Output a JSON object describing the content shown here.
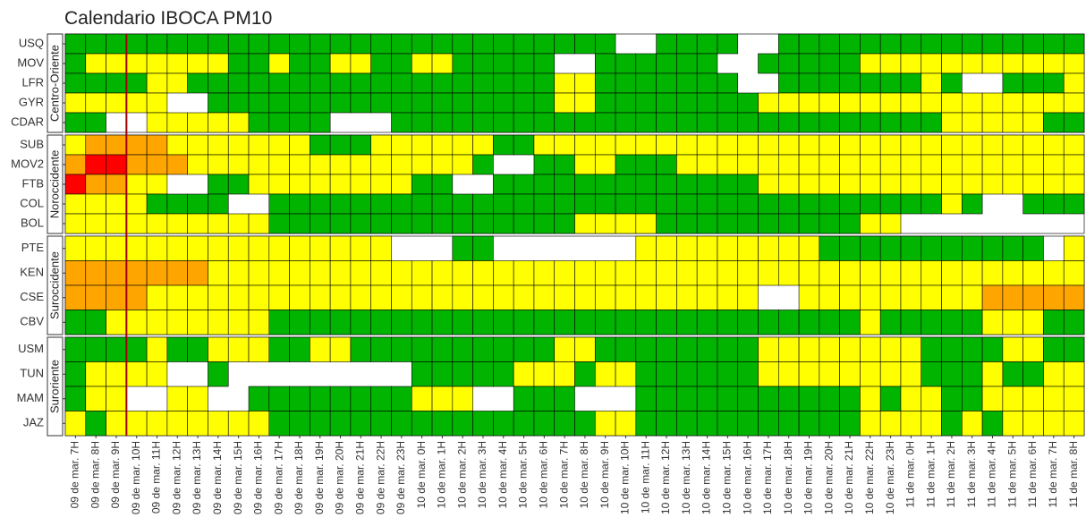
{
  "chart_data": {
    "type": "heatmap",
    "title": "Calendario IBOCA PM10",
    "categories": [
      "09 de mar. 7H",
      "09 de mar. 8H",
      "09 de mar. 9H",
      "09 de mar. 10H",
      "09 de mar. 11H",
      "09 de mar. 12H",
      "09 de mar. 13H",
      "09 de mar. 14H",
      "09 de mar. 15H",
      "09 de mar. 16H",
      "09 de mar. 17H",
      "09 de mar. 18H",
      "09 de mar. 19H",
      "09 de mar. 20H",
      "09 de mar. 21H",
      "09 de mar. 22H",
      "09 de mar. 23H",
      "10 de mar. 0H",
      "10 de mar. 1H",
      "10 de mar. 2H",
      "10 de mar. 3H",
      "10 de mar. 4H",
      "10 de mar. 5H",
      "10 de mar. 6H",
      "10 de mar. 7H",
      "10 de mar. 8H",
      "10 de mar. 9H",
      "10 de mar. 10H",
      "10 de mar. 11H",
      "10 de mar. 12H",
      "10 de mar. 13H",
      "10 de mar. 14H",
      "10 de mar. 15H",
      "10 de mar. 16H",
      "10 de mar. 17H",
      "10 de mar. 18H",
      "10 de mar. 19H",
      "10 de mar. 20H",
      "10 de mar. 21H",
      "10 de mar. 22H",
      "10 de mar. 23H",
      "11 de mar. 0H",
      "11 de mar. 1H",
      "11 de mar. 2H",
      "11 de mar. 3H",
      "11 de mar. 4H",
      "11 de mar. 5H",
      "11 de mar. 6H",
      "11 de mar. 7H",
      "11 de mar. 8H"
    ],
    "colors": [
      "#00b400",
      "#ffff00",
      "#ffa500",
      "#ff0000"
    ],
    "marker_after": "09 de mar. 9H",
    "marker_color": "#a00000",
    "groups": [
      {
        "name": "Centro-Oriente",
        "stations": [
          {
            "name": "USQ",
            "values": [
              0,
              0,
              0,
              0,
              0,
              0,
              0,
              0,
              0,
              0,
              0,
              0,
              0,
              0,
              0,
              0,
              0,
              0,
              0,
              0,
              0,
              0,
              0,
              0,
              0,
              0,
              0,
              null,
              null,
              0,
              0,
              0,
              0,
              null,
              null,
              0,
              0,
              0,
              0,
              0,
              0,
              0,
              0,
              0,
              0,
              0,
              0,
              0,
              0,
              0
            ]
          },
          {
            "name": "MOV",
            "values": [
              0,
              1,
              1,
              1,
              1,
              1,
              1,
              1,
              0,
              0,
              1,
              0,
              0,
              1,
              1,
              0,
              0,
              1,
              1,
              0,
              0,
              0,
              0,
              0,
              null,
              null,
              0,
              0,
              0,
              0,
              0,
              0,
              null,
              null,
              0,
              0,
              0,
              0,
              0,
              1,
              1,
              1,
              1,
              1,
              1,
              1,
              1,
              1,
              1,
              1
            ]
          },
          {
            "name": "LFR",
            "values": [
              0,
              0,
              0,
              0,
              1,
              1,
              0,
              0,
              0,
              0,
              0,
              0,
              0,
              0,
              0,
              0,
              0,
              0,
              0,
              0,
              0,
              0,
              0,
              0,
              1,
              1,
              0,
              0,
              0,
              0,
              0,
              0,
              0,
              null,
              null,
              0,
              0,
              0,
              0,
              0,
              0,
              0,
              1,
              0,
              null,
              null,
              0,
              0,
              0,
              1
            ]
          },
          {
            "name": "GYR",
            "values": [
              1,
              1,
              1,
              1,
              1,
              null,
              null,
              0,
              0,
              0,
              0,
              0,
              0,
              0,
              0,
              0,
              0,
              0,
              0,
              0,
              0,
              0,
              0,
              0,
              1,
              1,
              0,
              0,
              0,
              0,
              0,
              0,
              0,
              0,
              1,
              1,
              1,
              1,
              1,
              1,
              1,
              1,
              1,
              1,
              1,
              1,
              1,
              1,
              1,
              1
            ]
          },
          {
            "name": "CDAR",
            "values": [
              0,
              0,
              null,
              null,
              1,
              1,
              1,
              1,
              1,
              0,
              0,
              0,
              0,
              null,
              null,
              null,
              0,
              0,
              0,
              0,
              0,
              0,
              0,
              0,
              0,
              0,
              0,
              0,
              0,
              0,
              0,
              0,
              0,
              0,
              0,
              0,
              0,
              0,
              0,
              0,
              0,
              0,
              0,
              1,
              1,
              1,
              1,
              1,
              0,
              0
            ]
          }
        ]
      },
      {
        "name": "Noroccidente",
        "stations": [
          {
            "name": "SUB",
            "values": [
              1,
              2,
              2,
              2,
              2,
              1,
              1,
              1,
              1,
              1,
              1,
              1,
              0,
              0,
              0,
              1,
              1,
              1,
              1,
              1,
              1,
              0,
              0,
              1,
              1,
              1,
              1,
              1,
              1,
              1,
              1,
              1,
              1,
              1,
              1,
              1,
              1,
              1,
              1,
              1,
              1,
              1,
              1,
              1,
              1,
              1,
              1,
              1,
              1,
              1
            ]
          },
          {
            "name": "MOV2",
            "values": [
              2,
              3,
              3,
              2,
              2,
              2,
              1,
              1,
              1,
              1,
              1,
              1,
              1,
              1,
              1,
              1,
              1,
              1,
              1,
              1,
              0,
              null,
              null,
              0,
              0,
              1,
              1,
              0,
              0,
              0,
              1,
              1,
              1,
              1,
              1,
              1,
              1,
              1,
              1,
              1,
              1,
              1,
              1,
              1,
              1,
              1,
              1,
              1,
              1,
              1
            ]
          },
          {
            "name": "FTB",
            "values": [
              3,
              2,
              2,
              1,
              1,
              null,
              null,
              0,
              0,
              1,
              1,
              1,
              1,
              1,
              1,
              1,
              1,
              0,
              0,
              null,
              null,
              0,
              0,
              0,
              0,
              0,
              0,
              0,
              0,
              0,
              0,
              0,
              0,
              0,
              1,
              1,
              1,
              1,
              1,
              1,
              1,
              1,
              1,
              1,
              1,
              1,
              1,
              1,
              1,
              1
            ]
          },
          {
            "name": "COL",
            "values": [
              1,
              1,
              1,
              1,
              0,
              0,
              0,
              0,
              null,
              null,
              0,
              0,
              0,
              0,
              0,
              0,
              0,
              0,
              0,
              0,
              0,
              0,
              0,
              0,
              0,
              0,
              0,
              0,
              0,
              0,
              0,
              0,
              0,
              0,
              0,
              0,
              0,
              0,
              0,
              0,
              0,
              0,
              0,
              1,
              0,
              null,
              null,
              0,
              0,
              0
            ]
          },
          {
            "name": "BOL",
            "values": [
              1,
              1,
              1,
              1,
              1,
              1,
              1,
              1,
              1,
              1,
              0,
              0,
              0,
              0,
              0,
              0,
              0,
              0,
              0,
              0,
              0,
              0,
              0,
              0,
              0,
              1,
              1,
              1,
              1,
              0,
              0,
              0,
              0,
              0,
              0,
              0,
              0,
              0,
              0,
              1,
              1,
              null,
              null,
              null,
              null,
              null,
              null,
              null,
              null,
              null
            ]
          }
        ]
      },
      {
        "name": "Suroccidente",
        "stations": [
          {
            "name": "PTE",
            "values": [
              1,
              1,
              1,
              1,
              1,
              1,
              1,
              1,
              1,
              1,
              1,
              1,
              1,
              1,
              1,
              1,
              null,
              null,
              null,
              0,
              0,
              null,
              null,
              null,
              null,
              null,
              null,
              null,
              1,
              1,
              1,
              1,
              1,
              1,
              1,
              1,
              1,
              0,
              0,
              0,
              0,
              0,
              0,
              0,
              0,
              0,
              0,
              0,
              null,
              1
            ]
          },
          {
            "name": "KEN",
            "values": [
              2,
              2,
              2,
              2,
              2,
              2,
              2,
              1,
              1,
              1,
              1,
              1,
              1,
              1,
              1,
              1,
              1,
              1,
              1,
              1,
              1,
              1,
              1,
              1,
              1,
              1,
              1,
              1,
              1,
              1,
              1,
              1,
              1,
              1,
              1,
              1,
              1,
              1,
              1,
              1,
              1,
              1,
              1,
              1,
              1,
              1,
              1,
              1,
              1,
              1
            ]
          },
          {
            "name": "CSE",
            "values": [
              2,
              2,
              2,
              2,
              1,
              1,
              1,
              1,
              1,
              1,
              1,
              1,
              1,
              1,
              1,
              1,
              1,
              1,
              1,
              1,
              1,
              1,
              1,
              1,
              1,
              1,
              1,
              1,
              1,
              1,
              1,
              1,
              1,
              1,
              null,
              null,
              1,
              1,
              1,
              1,
              1,
              1,
              1,
              1,
              1,
              2,
              2,
              2,
              2,
              2
            ]
          },
          {
            "name": "CBV",
            "values": [
              0,
              0,
              1,
              1,
              1,
              1,
              1,
              1,
              1,
              1,
              0,
              0,
              0,
              0,
              0,
              0,
              0,
              0,
              0,
              0,
              0,
              0,
              0,
              0,
              0,
              0,
              0,
              0,
              0,
              0,
              0,
              0,
              0,
              0,
              0,
              0,
              0,
              0,
              0,
              1,
              0,
              0,
              0,
              0,
              0,
              1,
              1,
              1,
              0,
              0
            ]
          }
        ]
      },
      {
        "name": "Suroriente",
        "stations": [
          {
            "name": "USM",
            "values": [
              0,
              0,
              0,
              0,
              1,
              0,
              0,
              1,
              1,
              1,
              0,
              0,
              1,
              1,
              0,
              0,
              0,
              0,
              0,
              0,
              0,
              0,
              0,
              0,
              1,
              1,
              0,
              0,
              0,
              0,
              0,
              0,
              0,
              0,
              1,
              1,
              1,
              1,
              1,
              1,
              1,
              1,
              0,
              0,
              0,
              0,
              1,
              1,
              0,
              0
            ]
          },
          {
            "name": "TUN",
            "values": [
              0,
              1,
              1,
              1,
              1,
              null,
              null,
              0,
              null,
              null,
              null,
              null,
              null,
              null,
              null,
              null,
              null,
              0,
              0,
              0,
              0,
              0,
              1,
              1,
              1,
              0,
              1,
              1,
              0,
              0,
              0,
              0,
              0,
              0,
              1,
              1,
              1,
              1,
              1,
              1,
              1,
              1,
              0,
              0,
              0,
              1,
              0,
              0,
              1,
              1
            ]
          },
          {
            "name": "MAM",
            "values": [
              0,
              1,
              1,
              null,
              null,
              1,
              1,
              null,
              null,
              0,
              0,
              0,
              0,
              0,
              0,
              0,
              0,
              1,
              1,
              1,
              null,
              null,
              0,
              0,
              0,
              null,
              null,
              null,
              0,
              0,
              0,
              0,
              0,
              0,
              0,
              0,
              0,
              0,
              0,
              1,
              0,
              1,
              1,
              0,
              0,
              1,
              1,
              1,
              1,
              1
            ]
          },
          {
            "name": "JAZ",
            "values": [
              1,
              0,
              1,
              1,
              1,
              1,
              1,
              1,
              1,
              1,
              0,
              0,
              0,
              0,
              0,
              0,
              0,
              0,
              0,
              0,
              0,
              0,
              0,
              0,
              0,
              0,
              1,
              1,
              0,
              0,
              0,
              0,
              0,
              0,
              0,
              0,
              0,
              0,
              0,
              1,
              1,
              1,
              1,
              0,
              1,
              0,
              1,
              1,
              1,
              1
            ]
          }
        ]
      }
    ]
  }
}
